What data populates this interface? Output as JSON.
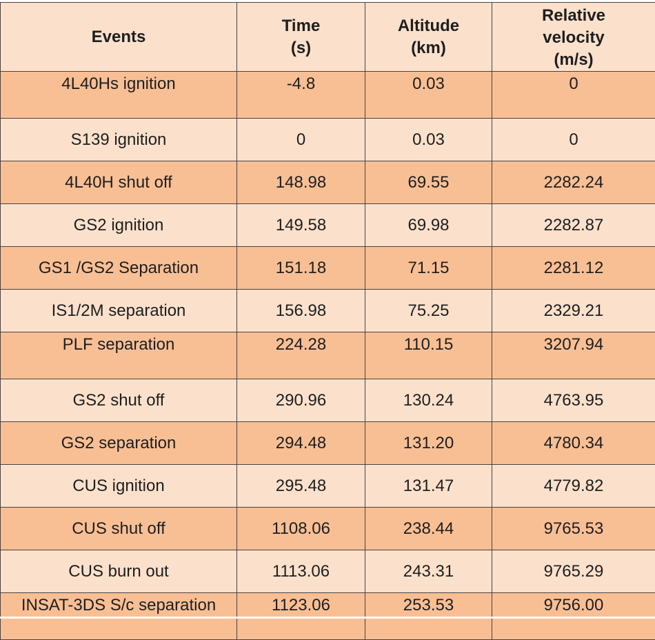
{
  "table": {
    "headers": {
      "events": "Events",
      "time_line1": "Time",
      "time_line2": "(s)",
      "altitude_line1": "Altitude",
      "altitude_line2": "(km)",
      "velocity_line1": "Relative",
      "velocity_line2": "velocity",
      "velocity_line3": "(m/s)"
    },
    "rows": [
      {
        "event": "4L40Hs ignition",
        "time": "-4.8",
        "altitude": "0.03",
        "velocity": "0"
      },
      {
        "event": "S139 ignition",
        "time": "0",
        "altitude": "0.03",
        "velocity": "0"
      },
      {
        "event": "4L40H shut off",
        "time": "148.98",
        "altitude": "69.55",
        "velocity": "2282.24"
      },
      {
        "event": "GS2 ignition",
        "time": "149.58",
        "altitude": "69.98",
        "velocity": "2282.87"
      },
      {
        "event": "GS1 /GS2 Separation",
        "time": "151.18",
        "altitude": "71.15",
        "velocity": "2281.12"
      },
      {
        "event": "IS1/2M separation",
        "time": "156.98",
        "altitude": "75.25",
        "velocity": "2329.21"
      },
      {
        "event": "PLF separation",
        "time": "224.28",
        "altitude": "110.15",
        "velocity": "3207.94"
      },
      {
        "event": "GS2 shut off",
        "time": "290.96",
        "altitude": "130.24",
        "velocity": "4763.95"
      },
      {
        "event": "GS2 separation",
        "time": "294.48",
        "altitude": "131.20",
        "velocity": "4780.34"
      },
      {
        "event": "CUS ignition",
        "time": "295.48",
        "altitude": "131.47",
        "velocity": "4779.82"
      },
      {
        "event": "CUS shut off",
        "time": "1108.06",
        "altitude": "238.44",
        "velocity": "9765.53"
      },
      {
        "event": "CUS burn out",
        "time": "1113.06",
        "altitude": "243.31",
        "velocity": "9765.29"
      },
      {
        "event": "INSAT-3DS S/c separation",
        "time": "1123.06",
        "altitude": "253.53",
        "velocity": "9756.00"
      }
    ]
  },
  "colors": {
    "row_dark": "#f8bf95",
    "row_light": "#fbe1cc",
    "border": "#4a4040",
    "text": "#1e1e1e"
  }
}
